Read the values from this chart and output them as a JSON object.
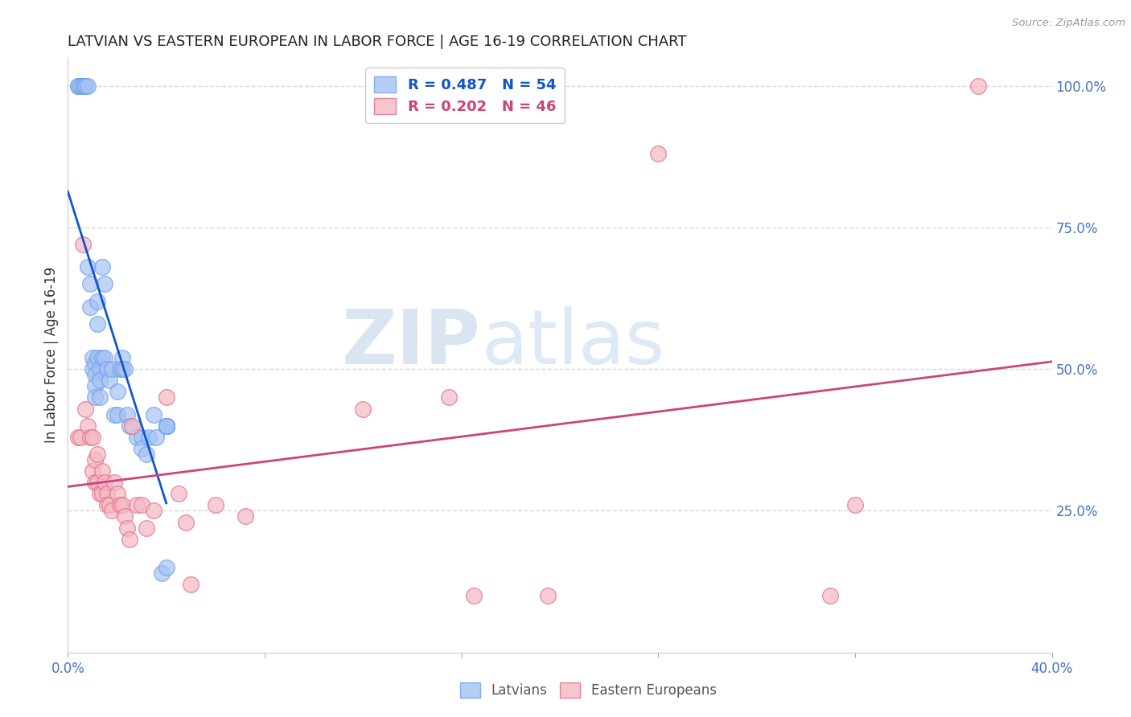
{
  "title": "LATVIAN VS EASTERN EUROPEAN IN LABOR FORCE | AGE 16-19 CORRELATION CHART",
  "source": "Source: ZipAtlas.com",
  "ylabel": "In Labor Force | Age 16-19",
  "xlim": [
    0.0,
    0.4
  ],
  "ylim": [
    0.0,
    1.05
  ],
  "xtick_positions": [
    0.0,
    0.08,
    0.16,
    0.24,
    0.32,
    0.4
  ],
  "xticklabels": [
    "0.0%",
    "",
    "",
    "",
    "",
    "40.0%"
  ],
  "yticks_right": [
    0.0,
    0.25,
    0.5,
    0.75,
    1.0
  ],
  "ytick_right_labels": [
    "",
    "25.0%",
    "50.0%",
    "75.0%",
    "100.0%"
  ],
  "r_latvian": 0.487,
  "n_latvian": 54,
  "r_eastern": 0.202,
  "n_eastern": 46,
  "blue_color": "#a4c2f4",
  "pink_color": "#f4b8c1",
  "blue_edge_color": "#6d9eeb",
  "pink_edge_color": "#e06c8a",
  "blue_line_color": "#1155cc",
  "pink_line_color": "#cc4478",
  "watermark_zip": "ZIP",
  "watermark_atlas": "atlas",
  "background_color": "#ffffff",
  "grid_color": "#d9d9d9",
  "latvians_x": [
    0.004,
    0.004,
    0.005,
    0.006,
    0.006,
    0.007,
    0.007,
    0.008,
    0.008,
    0.009,
    0.009,
    0.01,
    0.01,
    0.011,
    0.011,
    0.011,
    0.011,
    0.012,
    0.012,
    0.012,
    0.013,
    0.013,
    0.013,
    0.014,
    0.014,
    0.015,
    0.015,
    0.016,
    0.017,
    0.018,
    0.019,
    0.02,
    0.02,
    0.021,
    0.022,
    0.022,
    0.023,
    0.024,
    0.025,
    0.028,
    0.03,
    0.03,
    0.032,
    0.033,
    0.035,
    0.036,
    0.038,
    0.04,
    0.04,
    0.04,
    0.04,
    0.04,
    0.04,
    0.04
  ],
  "latvians_y": [
    1.0,
    1.0,
    1.0,
    1.0,
    1.0,
    1.0,
    1.0,
    1.0,
    0.68,
    0.65,
    0.61,
    0.52,
    0.5,
    0.51,
    0.49,
    0.47,
    0.45,
    0.62,
    0.58,
    0.52,
    0.5,
    0.48,
    0.45,
    0.52,
    0.68,
    0.65,
    0.52,
    0.5,
    0.48,
    0.5,
    0.42,
    0.46,
    0.42,
    0.5,
    0.52,
    0.5,
    0.5,
    0.42,
    0.4,
    0.38,
    0.38,
    0.36,
    0.35,
    0.38,
    0.42,
    0.38,
    0.14,
    0.4,
    0.4,
    0.4,
    0.4,
    0.4,
    0.4,
    0.15
  ],
  "eastern_x": [
    0.004,
    0.005,
    0.006,
    0.007,
    0.008,
    0.009,
    0.01,
    0.01,
    0.011,
    0.011,
    0.012,
    0.012,
    0.013,
    0.014,
    0.014,
    0.015,
    0.016,
    0.016,
    0.017,
    0.018,
    0.019,
    0.02,
    0.021,
    0.022,
    0.023,
    0.024,
    0.025,
    0.026,
    0.028,
    0.03,
    0.032,
    0.035,
    0.04,
    0.045,
    0.048,
    0.05,
    0.06,
    0.072,
    0.12,
    0.155,
    0.165,
    0.195,
    0.24,
    0.31,
    0.32,
    0.37
  ],
  "eastern_y": [
    0.38,
    0.38,
    0.72,
    0.43,
    0.4,
    0.38,
    0.38,
    0.32,
    0.34,
    0.3,
    0.35,
    0.3,
    0.28,
    0.32,
    0.28,
    0.3,
    0.28,
    0.26,
    0.26,
    0.25,
    0.3,
    0.28,
    0.26,
    0.26,
    0.24,
    0.22,
    0.2,
    0.4,
    0.26,
    0.26,
    0.22,
    0.25,
    0.45,
    0.28,
    0.23,
    0.12,
    0.26,
    0.24,
    0.43,
    0.45,
    0.1,
    0.1,
    0.88,
    0.1,
    0.26,
    1.0
  ]
}
